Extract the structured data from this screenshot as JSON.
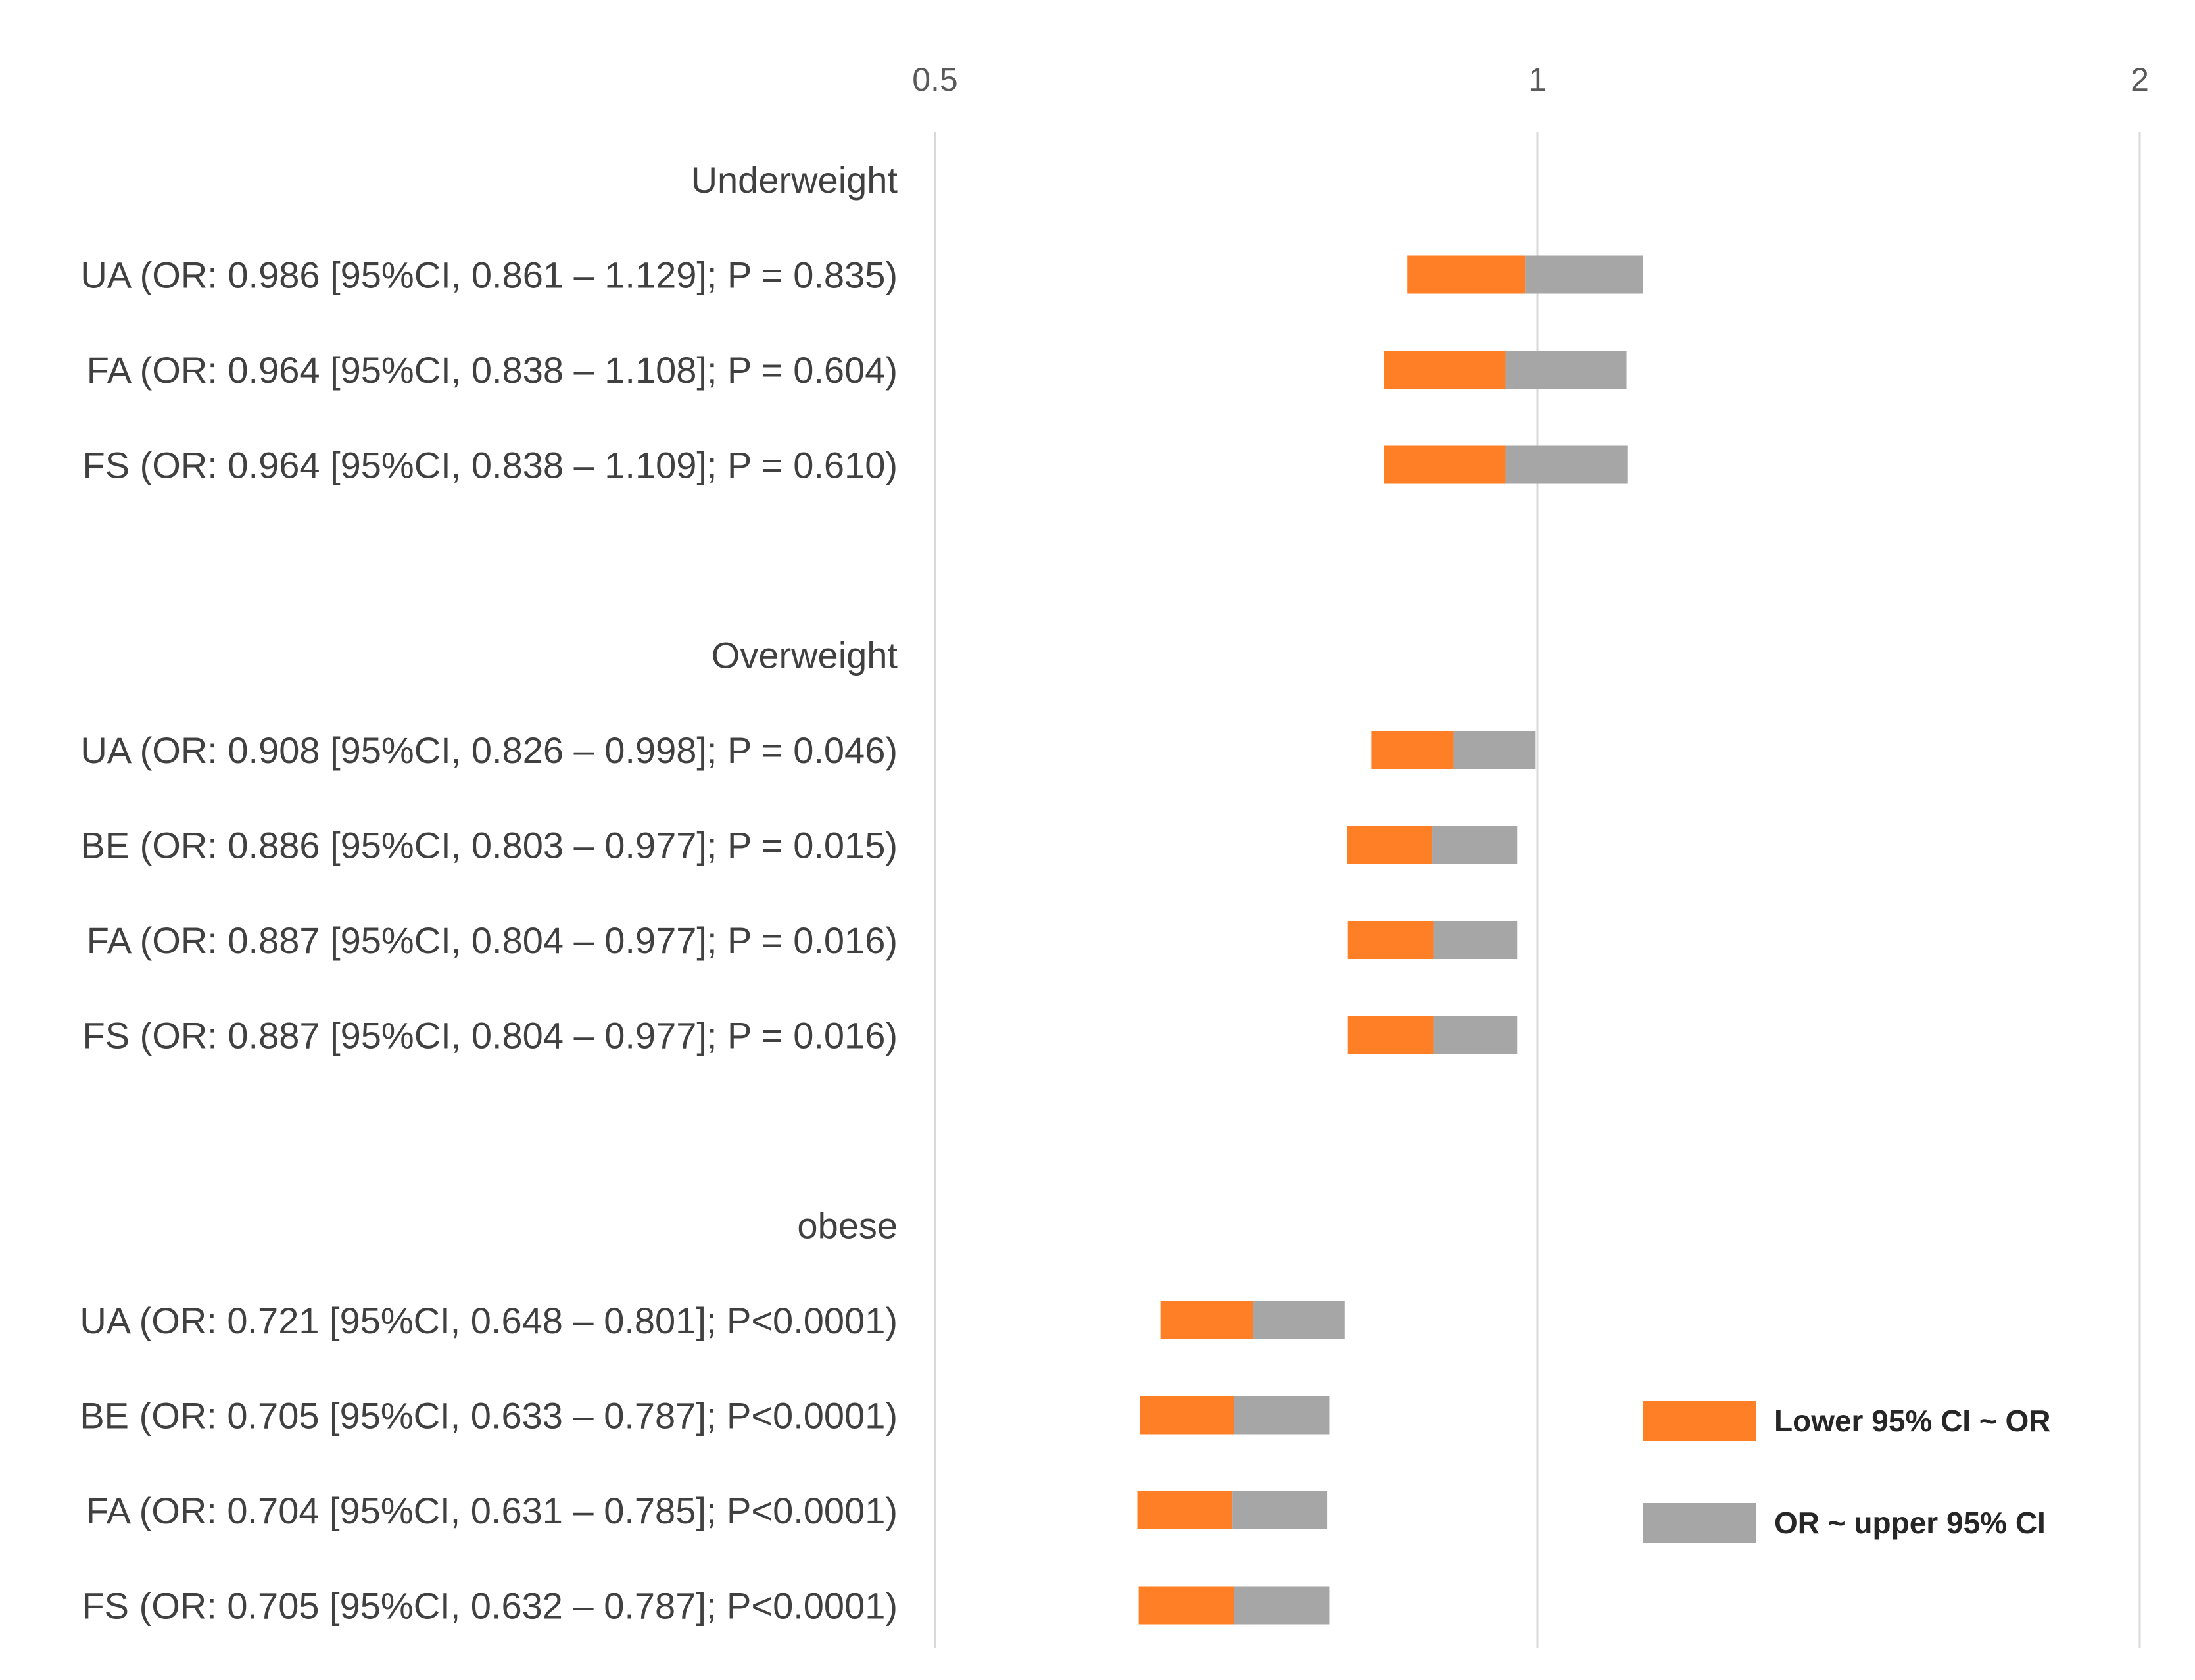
{
  "chart_data": {
    "type": "bar",
    "subtype": "horizontal-stacked-range-log",
    "x_scale": "log",
    "xlim": [
      0.5,
      2
    ],
    "x_ticks": [
      {
        "value": 0.5,
        "label": "0.5"
      },
      {
        "value": 1,
        "label": "1"
      },
      {
        "value": 2,
        "label": "2"
      }
    ],
    "grid": true,
    "legend_position": "bottom-right",
    "colors": {
      "lower": "#FF7F27",
      "upper": "#A6A6A6",
      "grid": "#D9D9D9"
    },
    "legend": [
      {
        "name": "Lower 95% CI ~ OR",
        "color": "#FF7F27"
      },
      {
        "name": "OR ~ upper 95% CI",
        "color": "#A6A6A6"
      }
    ],
    "rows": [
      {
        "type": "group",
        "label": "Underweight"
      },
      {
        "type": "item",
        "label": "UA (OR: 0.986 [95%CI, 0.861 – 1.129]; P = 0.835)",
        "lower": 0.861,
        "or": 0.986,
        "upper": 1.129
      },
      {
        "type": "item",
        "label": "FA (OR: 0.964 [95%CI, 0.838 – 1.108]; P = 0.604)",
        "lower": 0.838,
        "or": 0.964,
        "upper": 1.108
      },
      {
        "type": "item",
        "label": "FS (OR: 0.964 [95%CI, 0.838 – 1.109]; P = 0.610)",
        "lower": 0.838,
        "or": 0.964,
        "upper": 1.109
      },
      {
        "type": "spacer"
      },
      {
        "type": "group",
        "label": "Overweight"
      },
      {
        "type": "item",
        "label": "UA (OR: 0.908 [95%CI, 0.826 – 0.998]; P = 0.046)",
        "lower": 0.826,
        "or": 0.908,
        "upper": 0.998
      },
      {
        "type": "item",
        "label": "BE (OR: 0.886 [95%CI, 0.803 – 0.977]; P = 0.015)",
        "lower": 0.803,
        "or": 0.886,
        "upper": 0.977
      },
      {
        "type": "item",
        "label": "FA (OR: 0.887 [95%CI, 0.804 – 0.977]; P = 0.016)",
        "lower": 0.804,
        "or": 0.887,
        "upper": 0.977
      },
      {
        "type": "item",
        "label": "FS (OR: 0.887 [95%CI, 0.804 – 0.977]; P = 0.016)",
        "lower": 0.804,
        "or": 0.887,
        "upper": 0.977
      },
      {
        "type": "spacer"
      },
      {
        "type": "group",
        "label": "obese"
      },
      {
        "type": "item",
        "label": "UA (OR: 0.721 [95%CI, 0.648 – 0.801]; P<0.0001)",
        "lower": 0.648,
        "or": 0.721,
        "upper": 0.801
      },
      {
        "type": "item",
        "label": "BE (OR: 0.705 [95%CI, 0.633 – 0.787]; P<0.0001)",
        "lower": 0.633,
        "or": 0.705,
        "upper": 0.787
      },
      {
        "type": "item",
        "label": "FA (OR: 0.704 [95%CI, 0.631 – 0.785]; P<0.0001)",
        "lower": 0.631,
        "or": 0.704,
        "upper": 0.785
      },
      {
        "type": "item",
        "label": "FS (OR: 0.705 [95%CI, 0.632 – 0.787]; P<0.0001)",
        "lower": 0.632,
        "or": 0.705,
        "upper": 0.787
      }
    ]
  }
}
